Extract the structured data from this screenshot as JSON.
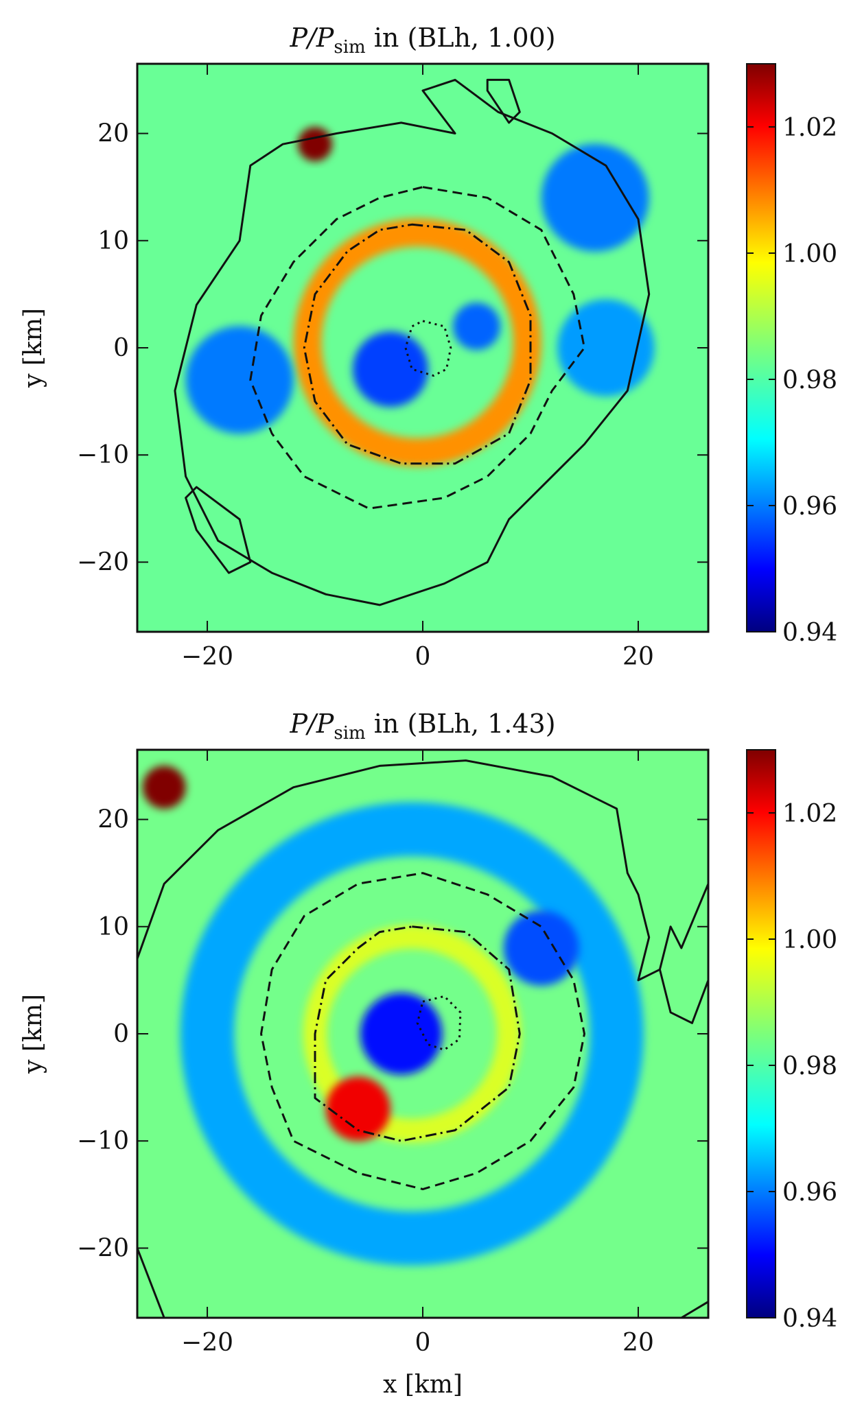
{
  "chart_data": [
    {
      "type": "heatmap",
      "title": "P/P",
      "title_sub": "sim",
      "title_tail": " in (BLh, 1.00)",
      "xlabel": "",
      "ylabel": "y [km]",
      "xlim": [
        -26.5,
        26.5
      ],
      "ylim": [
        -26.5,
        26.5
      ],
      "xticks": [
        -20,
        0,
        20
      ],
      "yticks": [
        -20,
        -10,
        0,
        10,
        20
      ],
      "xtick_labels": [
        "−20",
        "0",
        "20"
      ],
      "ytick_labels": [
        "−20",
        "−10",
        "0",
        "10",
        "20"
      ],
      "colorbar": {
        "range": [
          0.94,
          1.03
        ],
        "ticks": [
          0.94,
          0.96,
          0.98,
          1.0,
          1.02
        ],
        "tick_labels": [
          "0.94",
          "0.96",
          "0.98",
          "1.00",
          "1.02"
        ],
        "colormap": "jet"
      },
      "background_value": 0.983,
      "features": [
        {
          "kind": "ring",
          "center": [
            -0.5,
            0.5
          ],
          "r": 10.2,
          "width": 2.6,
          "value": 1.006
        },
        {
          "kind": "blob",
          "center": [
            -3,
            -2
          ],
          "r": 3.5,
          "value": 0.957
        },
        {
          "kind": "blob",
          "center": [
            5,
            2
          ],
          "r": 2.2,
          "value": 0.96
        },
        {
          "kind": "blob",
          "center": [
            -17,
            -3
          ],
          "r": 5,
          "value": 0.962
        },
        {
          "kind": "blob",
          "center": [
            16,
            14
          ],
          "r": 5,
          "value": 0.962
        },
        {
          "kind": "blob",
          "center": [
            17,
            0
          ],
          "r": 4.5,
          "value": 0.965
        },
        {
          "kind": "blob",
          "center": [
            -10,
            19
          ],
          "r": 1.6,
          "value": 1.03
        }
      ],
      "contours": [
        {
          "style": "dotted",
          "points": [
            [
              0,
              2.5
            ],
            [
              2,
              2
            ],
            [
              2.6,
              0
            ],
            [
              2.2,
              -2
            ],
            [
              1,
              -2.6
            ],
            [
              -1,
              -2
            ],
            [
              -1.6,
              0
            ],
            [
              -1,
              2
            ]
          ]
        },
        {
          "style": "dashdot",
          "points": [
            [
              -1,
              11.5
            ],
            [
              4,
              11
            ],
            [
              8,
              8
            ],
            [
              10,
              3
            ],
            [
              10,
              -3
            ],
            [
              8,
              -8
            ],
            [
              3,
              -10.8
            ],
            [
              -2,
              -10.8
            ],
            [
              -7,
              -9
            ],
            [
              -10,
              -5
            ],
            [
              -11,
              0
            ],
            [
              -10,
              5
            ],
            [
              -7,
              9
            ],
            [
              -4,
              11
            ]
          ]
        },
        {
          "style": "dashed",
          "points": [
            [
              0,
              15
            ],
            [
              6,
              14
            ],
            [
              11,
              11
            ],
            [
              14,
              5
            ],
            [
              15,
              0
            ],
            [
              12,
              -4
            ],
            [
              10,
              -8
            ],
            [
              6,
              -12
            ],
            [
              2,
              -14
            ],
            [
              -5,
              -15
            ],
            [
              -11,
              -12
            ],
            [
              -14,
              -8
            ],
            [
              -16,
              -3
            ],
            [
              -15,
              3
            ],
            [
              -12,
              8
            ],
            [
              -8,
              12
            ],
            [
              -4,
              14
            ]
          ]
        },
        {
          "style": "solid",
          "points": [
            [
              -2,
              21
            ],
            [
              3,
              20
            ],
            [
              0,
              24
            ],
            [
              3,
              25
            ],
            [
              7,
              22
            ],
            [
              12,
              20
            ],
            [
              17,
              17
            ],
            [
              20,
              12
            ],
            [
              21,
              5
            ],
            [
              19,
              -4
            ],
            [
              15,
              -9
            ],
            [
              12,
              -12
            ],
            [
              8,
              -16
            ],
            [
              6,
              -20
            ],
            [
              2,
              -22
            ],
            [
              -4,
              -24
            ],
            [
              -9,
              -23
            ],
            [
              -14,
              -21
            ],
            [
              -19,
              -18
            ],
            [
              -22,
              -12
            ],
            [
              -23,
              -4
            ],
            [
              -21,
              4
            ],
            [
              -17,
              10
            ],
            [
              -16,
              17
            ],
            [
              -13,
              19
            ],
            [
              -8,
              20
            ]
          ]
        },
        {
          "style": "solid",
          "points": [
            [
              -21,
              -13
            ],
            [
              -17,
              -16
            ],
            [
              -16,
              -20
            ],
            [
              -18,
              -21
            ],
            [
              -21,
              -17
            ],
            [
              -22,
              -14
            ]
          ]
        },
        {
          "style": "solid",
          "points": [
            [
              6,
              24
            ],
            [
              8,
              21
            ],
            [
              9,
              22
            ],
            [
              8,
              25
            ],
            [
              6,
              25
            ]
          ]
        }
      ]
    },
    {
      "type": "heatmap",
      "title": "P/P",
      "title_sub": "sim",
      "title_tail": " in (BLh, 1.43)",
      "xlabel": "x [km]",
      "ylabel": "y [km]",
      "xlim": [
        -26.5,
        26.5
      ],
      "ylim": [
        -26.5,
        26.5
      ],
      "xticks": [
        -20,
        0,
        20
      ],
      "yticks": [
        -20,
        -10,
        0,
        10,
        20
      ],
      "xtick_labels": [
        "−20",
        "0",
        "20"
      ],
      "ytick_labels": [
        "−20",
        "−10",
        "0",
        "10",
        "20"
      ],
      "colorbar": {
        "range": [
          0.94,
          1.03
        ],
        "ticks": [
          0.94,
          0.96,
          0.98,
          1.0,
          1.02
        ],
        "tick_labels": [
          "0.94",
          "0.96",
          "0.98",
          "1.00",
          "1.02"
        ],
        "colormap": "jet"
      },
      "background_value": 0.984,
      "features": [
        {
          "kind": "ring",
          "center": [
            -1,
            0
          ],
          "r": 19,
          "width": 5,
          "value": 0.966
        },
        {
          "kind": "ring",
          "center": [
            -1,
            0
          ],
          "r": 9,
          "width": 2.2,
          "value": 0.993
        },
        {
          "kind": "blob",
          "center": [
            -6,
            -7
          ],
          "r": 3,
          "value": 1.02
        },
        {
          "kind": "blob",
          "center": [
            -2,
            0
          ],
          "r": 3.8,
          "value": 0.952
        },
        {
          "kind": "blob",
          "center": [
            11,
            8
          ],
          "r": 3.5,
          "value": 0.958
        },
        {
          "kind": "blob",
          "center": [
            -24,
            23
          ],
          "r": 2,
          "value": 1.03
        }
      ],
      "contours": [
        {
          "style": "dotted",
          "points": [
            [
              0,
              3
            ],
            [
              2,
              3.5
            ],
            [
              3.5,
              2
            ],
            [
              3.4,
              -0.5
            ],
            [
              2,
              -1.5
            ],
            [
              0.5,
              -1
            ],
            [
              -0.5,
              1
            ]
          ]
        },
        {
          "style": "dashdot",
          "points": [
            [
              -1,
              10
            ],
            [
              4,
              9.5
            ],
            [
              8,
              6
            ],
            [
              9,
              0
            ],
            [
              8,
              -5
            ],
            [
              3,
              -9
            ],
            [
              -2,
              -10
            ],
            [
              -6,
              -9
            ],
            [
              -10,
              -6
            ],
            [
              -10,
              0
            ],
            [
              -9,
              5
            ],
            [
              -6,
              8
            ],
            [
              -4,
              9.5
            ]
          ]
        },
        {
          "style": "dashed",
          "points": [
            [
              0,
              15
            ],
            [
              6,
              13
            ],
            [
              11,
              10
            ],
            [
              14,
              5
            ],
            [
              15,
              0
            ],
            [
              14,
              -5
            ],
            [
              10,
              -10
            ],
            [
              5,
              -13
            ],
            [
              0,
              -14.5
            ],
            [
              -6,
              -13
            ],
            [
              -12,
              -10
            ],
            [
              -14,
              -5
            ],
            [
              -15,
              0
            ],
            [
              -14,
              6
            ],
            [
              -11,
              11
            ],
            [
              -6,
              14
            ]
          ]
        },
        {
          "style": "solid",
          "points": [
            [
              -26.5,
              7
            ],
            [
              -24,
              14
            ],
            [
              -19,
              19
            ],
            [
              -12,
              23
            ],
            [
              -4,
              25
            ],
            [
              4,
              25.5
            ],
            [
              12,
              24
            ],
            [
              18,
              21
            ],
            [
              19,
              15
            ],
            [
              20,
              13
            ],
            [
              21,
              9
            ],
            [
              20,
              5
            ],
            [
              22,
              6
            ],
            [
              23,
              10
            ],
            [
              24,
              8
            ],
            [
              26.5,
              14
            ]
          ]
        },
        {
          "style": "solid",
          "points": [
            [
              22,
              6
            ],
            [
              23,
              2
            ],
            [
              25,
              1
            ],
            [
              26.5,
              5
            ]
          ]
        },
        {
          "style": "solid",
          "points": [
            [
              -26.5,
              -20
            ],
            [
              -24,
              -26.5
            ]
          ]
        },
        {
          "style": "solid",
          "points": [
            [
              24,
              -26.5
            ],
            [
              26.5,
              -25
            ]
          ]
        }
      ]
    }
  ]
}
